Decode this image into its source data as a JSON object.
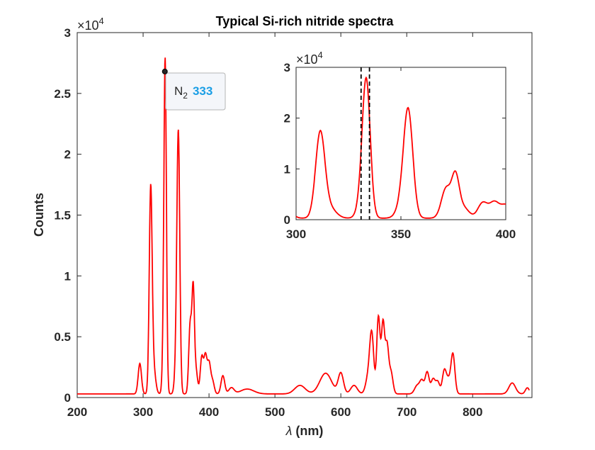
{
  "chart_data": [
    {
      "type": "line",
      "title": "Typical Si-rich nitride spectra",
      "xlabel_symbol": "λ",
      "xlabel_unit": " (nm)",
      "ylabel": "Counts",
      "y_multiplier": "×10",
      "y_multiplier_exp": "4",
      "xlim": [
        200,
        890
      ],
      "ylim": [
        0,
        30000
      ],
      "xticks": [
        200,
        300,
        400,
        500,
        600,
        700,
        800
      ],
      "yticks": [
        0,
        5000,
        10000,
        15000,
        20000,
        25000,
        30000
      ],
      "ytick_labels": [
        "0",
        "0.5",
        "1",
        "1.5",
        "2",
        "2.5",
        "3"
      ],
      "line_color": "#ff0000",
      "grid": false,
      "datatip": {
        "x": 333,
        "y": 26800,
        "label": "N",
        "subscript": "2",
        "value": "333",
        "value_color": "#1a9ee5"
      },
      "series": [
        {
          "peaks": [
            {
              "center": 295,
              "height": 2500,
              "width": 2.5
            },
            {
              "center": 311.5,
              "height": 16600,
              "width": 2.2
            },
            {
              "center": 316,
              "height": 2000,
              "width": 3
            },
            {
              "center": 333.5,
              "height": 26500,
              "width": 1.9
            },
            {
              "center": 331,
              "height": 2500,
              "width": 2
            },
            {
              "center": 353.5,
              "height": 20500,
              "width": 2.2
            },
            {
              "center": 350.5,
              "height": 2500,
              "width": 2.5
            },
            {
              "center": 371.5,
              "height": 5800,
              "width": 2.2
            },
            {
              "center": 376,
              "height": 8000,
              "width": 1.8
            },
            {
              "center": 380,
              "height": 2000,
              "width": 2.5
            },
            {
              "center": 389,
              "height": 3000,
              "width": 2.3
            },
            {
              "center": 394.5,
              "height": 3000,
              "width": 2.3
            },
            {
              "center": 400,
              "height": 2500,
              "width": 2.5
            },
            {
              "center": 405.5,
              "height": 1000,
              "width": 2.5
            },
            {
              "center": 421,
              "height": 1500,
              "width": 2.8
            },
            {
              "center": 434,
              "height": 500,
              "width": 4
            },
            {
              "center": 458,
              "height": 400,
              "width": 10
            },
            {
              "center": 538,
              "height": 700,
              "width": 8
            },
            {
              "center": 577,
              "height": 1700,
              "width": 9
            },
            {
              "center": 600,
              "height": 1700,
              "width": 4
            },
            {
              "center": 620,
              "height": 700,
              "width": 5
            },
            {
              "center": 642,
              "height": 1500,
              "width": 4
            },
            {
              "center": 647,
              "height": 4500,
              "width": 3
            },
            {
              "center": 657,
              "height": 6300,
              "width": 2.5
            },
            {
              "center": 664,
              "height": 5800,
              "width": 2.5
            },
            {
              "center": 670,
              "height": 3800,
              "width": 2.5
            },
            {
              "center": 676,
              "height": 1800,
              "width": 3
            },
            {
              "center": 716,
              "height": 700,
              "width": 4
            },
            {
              "center": 723,
              "height": 1000,
              "width": 3
            },
            {
              "center": 731,
              "height": 1800,
              "width": 3
            },
            {
              "center": 740,
              "height": 1200,
              "width": 3
            },
            {
              "center": 747,
              "height": 1000,
              "width": 3
            },
            {
              "center": 757,
              "height": 1900,
              "width": 3
            },
            {
              "center": 763,
              "height": 1000,
              "width": 3
            },
            {
              "center": 770,
              "height": 3300,
              "width": 3
            },
            {
              "center": 860,
              "height": 900,
              "width": 5
            },
            {
              "center": 883,
              "height": 500,
              "width": 3
            }
          ],
          "baseline": 300
        }
      ]
    },
    {
      "type": "line",
      "inset": true,
      "xlim": [
        300,
        400
      ],
      "ylim": [
        0,
        30000
      ],
      "xticks": [
        300,
        350,
        400
      ],
      "yticks": [
        0,
        10000,
        20000,
        30000
      ],
      "ytick_labels": [
        "0",
        "1",
        "2",
        "3"
      ],
      "y_multiplier": "×10",
      "y_multiplier_exp": "4",
      "markers_x": [
        331,
        335
      ],
      "line_color": "#ff0000"
    }
  ]
}
